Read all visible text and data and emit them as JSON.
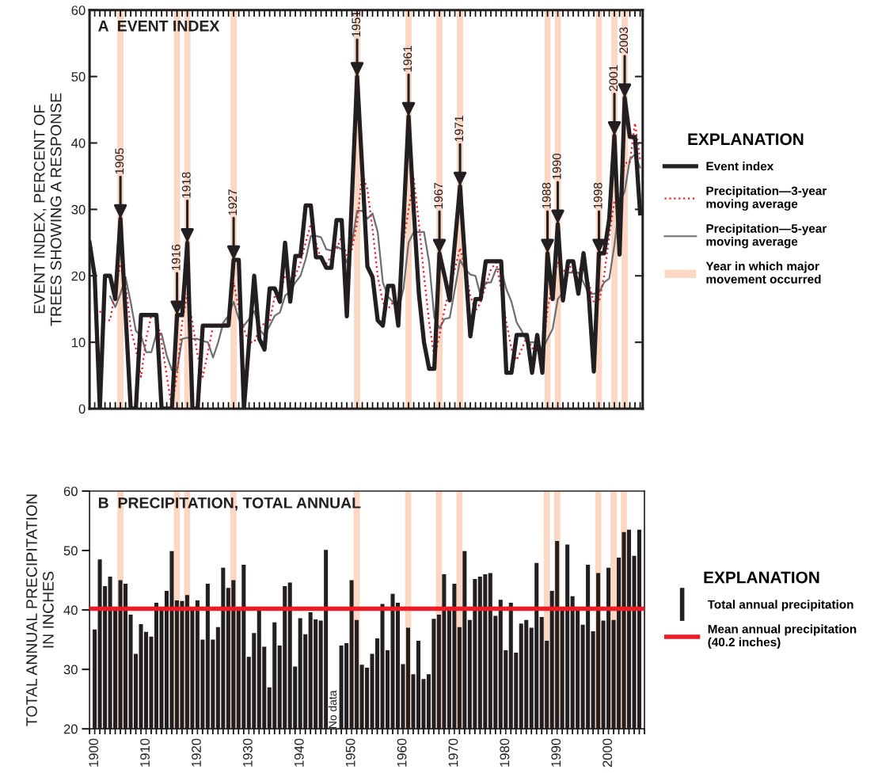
{
  "chart_data": [
    {
      "type": "line",
      "title": "A  EVENT INDEX",
      "ylabel": "EVENT INDEX, PERCENT OF\nTREES SHOWING A RESPONSE",
      "legend_title": "EXPLANATION",
      "legend": "right",
      "tick_labels": "y",
      "grid": false,
      "xlim": [
        1899,
        2006.5
      ],
      "xticks": [
        1900,
        1910,
        1920,
        1930,
        1940,
        1950,
        1960,
        1970,
        1980,
        1990,
        2000
      ],
      "ylim": [
        0,
        60
      ],
      "yticks": [
        0,
        10,
        20,
        30,
        40,
        50,
        60
      ],
      "series": [
        {
          "name": "Event index",
          "color": "#231f20",
          "line_style": "solid",
          "x": [
            1899,
            1900,
            1901,
            1902,
            1903,
            1904,
            1905,
            1906,
            1907,
            1908,
            1909,
            1910,
            1911,
            1912,
            1913,
            1914,
            1915,
            1916,
            1917,
            1918,
            1919,
            1920,
            1921,
            1922,
            1923,
            1924,
            1925,
            1926,
            1927,
            1928,
            1929,
            1930,
            1931,
            1932,
            1933,
            1934,
            1935,
            1936,
            1937,
            1938,
            1939,
            1940,
            1941,
            1942,
            1943,
            1944,
            1945,
            1946,
            1947,
            1948,
            1949,
            1950,
            1951,
            1952,
            1953,
            1954,
            1955,
            1956,
            1957,
            1958,
            1959,
            1960,
            1961,
            1962,
            1963,
            1964,
            1965,
            1966,
            1967,
            1968,
            1969,
            1970,
            1971,
            1972,
            1973,
            1974,
            1975,
            1976,
            1977,
            1978,
            1979,
            1980,
            1981,
            1982,
            1983,
            1984,
            1985,
            1986,
            1987,
            1988,
            1989,
            1990,
            1991,
            1992,
            1993,
            1994,
            1995,
            1996,
            1997,
            1998,
            1999,
            2000,
            2001,
            2002,
            2003,
            2004,
            2005,
            2006
          ],
          "values": [
            25,
            20,
            0,
            20,
            20,
            16.5,
            28.6,
            14.3,
            0,
            0,
            14.1,
            14.1,
            14.1,
            14.1,
            0,
            0,
            0,
            14.1,
            14.1,
            25,
            0,
            0,
            12.5,
            12.5,
            12.5,
            12.5,
            12.5,
            12.5,
            22.4,
            22.4,
            0,
            10,
            20,
            10.5,
            8.9,
            18.1,
            18.1,
            16.1,
            25,
            16.1,
            23,
            23,
            30.6,
            30.6,
            22.8,
            22.8,
            21.2,
            21.2,
            28.4,
            28.4,
            13.9,
            32,
            50,
            36,
            21.4,
            19.8,
            13.3,
            12.5,
            18.5,
            18.5,
            12.5,
            28,
            44,
            30,
            17.3,
            10,
            6,
            6,
            23.4,
            20,
            16.3,
            25,
            33.5,
            22,
            10.9,
            16.5,
            16.5,
            22.2,
            22.2,
            22.2,
            22.2,
            5.4,
            5.4,
            11.1,
            11.1,
            11.1,
            5.4,
            11.1,
            5.4,
            23.4,
            16.5,
            27.8,
            16.3,
            22.2,
            22.2,
            17.3,
            23.4,
            17.3,
            5.6,
            23.4,
            23.4,
            28.6,
            41.1,
            23.2,
            46.8,
            40.9,
            40.9,
            29.4
          ]
        },
        {
          "name": "Precipitation—3-year\nmoving average",
          "color": "#e8202a",
          "line_style": "dotted",
          "x": [
            1901,
            1902,
            1903,
            1904,
            1905,
            1906,
            1907,
            1908,
            1909,
            1910,
            1911,
            1912,
            1913,
            1914,
            1915,
            1916,
            1917,
            1918,
            1919,
            1920,
            1921,
            1922,
            1923,
            1924,
            1925,
            1926,
            1927,
            1928,
            1929,
            1930,
            1931,
            1932,
            1933,
            1934,
            1935,
            1936,
            1937,
            1938,
            1939,
            1940,
            1941,
            1942,
            1943,
            1944,
            1945,
            1946,
            1947,
            1948,
            1949,
            1950,
            1951,
            1952,
            1953,
            1954,
            1955,
            1956,
            1957,
            1958,
            1959,
            1960,
            1961,
            1962,
            1963,
            1964,
            1965,
            1966,
            1967,
            1968,
            1969,
            1970,
            1971,
            1972,
            1973,
            1974,
            1975,
            1976,
            1977,
            1978,
            1979,
            1980,
            1981,
            1982,
            1983,
            1984,
            1985,
            1986,
            1987,
            1988,
            1989,
            1990,
            1991,
            1992,
            1993,
            1994,
            1995,
            1996,
            1997,
            1998,
            1999,
            2000,
            2001,
            2002,
            2003,
            2004,
            2005,
            2006
          ],
          "values": [
            14.7,
            13.3,
            13.3,
            17.7,
            21.8,
            19,
            12,
            9,
            4.8,
            10.5,
            14.1,
            14.1,
            10,
            5,
            0,
            5.2,
            13,
            17.3,
            12.9,
            8,
            4.8,
            8.5,
            12.5,
            12.5,
            12.5,
            13.3,
            19,
            15,
            12,
            10,
            10,
            12,
            12.9,
            13,
            17,
            17.5,
            20,
            19.5,
            20,
            22,
            25,
            27.8,
            25,
            22.5,
            21.8,
            23,
            24,
            26,
            23,
            24,
            28,
            35.5,
            33,
            27,
            20,
            16,
            15,
            16,
            16.5,
            25,
            30,
            34.7,
            28,
            20,
            13,
            7.7,
            11,
            15,
            18,
            21,
            24.2,
            21,
            17,
            14.7,
            16,
            18.5,
            21,
            22,
            18,
            13,
            9,
            7.3,
            9,
            10.9,
            9.1,
            9,
            7.3,
            15,
            19,
            22,
            20.4,
            22,
            20.5,
            21,
            21,
            19,
            16,
            16,
            20,
            26,
            31.3,
            31.3,
            37,
            37,
            43,
            37.5
          ]
        },
        {
          "name": "Precipitation—5-year\nmoving average",
          "color": "#6d6e71",
          "line_style": "solid",
          "x": [
            1903,
            1904,
            1905,
            1906,
            1907,
            1908,
            1909,
            1910,
            1911,
            1912,
            1913,
            1914,
            1915,
            1916,
            1917,
            1918,
            1919,
            1920,
            1921,
            1922,
            1923,
            1924,
            1925,
            1926,
            1927,
            1928,
            1929,
            1930,
            1931,
            1932,
            1933,
            1934,
            1935,
            1936,
            1937,
            1938,
            1939,
            1940,
            1941,
            1942,
            1943,
            1944,
            1945,
            1946,
            1947,
            1948,
            1949,
            1950,
            1951,
            1952,
            1953,
            1954,
            1955,
            1956,
            1957,
            1958,
            1959,
            1960,
            1961,
            1962,
            1963,
            1964,
            1965,
            1966,
            1967,
            1968,
            1969,
            1970,
            1971,
            1972,
            1973,
            1974,
            1975,
            1976,
            1977,
            1978,
            1979,
            1980,
            1981,
            1982,
            1983,
            1984,
            1985,
            1986,
            1987,
            1988,
            1989,
            1990,
            1991,
            1992,
            1993,
            1994,
            1995,
            1996,
            1997,
            1998,
            1999,
            2000,
            2001,
            2002,
            2003,
            2004,
            2005,
            2006
          ],
          "values": [
            16.9,
            15.3,
            17.3,
            19.8,
            16,
            11.7,
            11,
            8.5,
            8.5,
            11.3,
            11.3,
            8,
            5.8,
            5.8,
            10.5,
            10.7,
            10.5,
            10.5,
            10.2,
            10,
            7.7,
            10,
            13,
            14,
            16.1,
            13.5,
            12.5,
            13.5,
            14.7,
            12,
            11,
            12.5,
            14,
            14.5,
            17,
            17.7,
            19,
            20,
            22.5,
            26,
            26,
            25.8,
            24,
            23.8,
            24.4,
            24,
            22,
            25,
            29.8,
            29.8,
            28.6,
            29.4,
            26.6,
            19,
            16.9,
            16,
            14.9,
            18,
            25,
            26.6,
            26.6,
            26.6,
            22,
            13.7,
            12.1,
            13.5,
            13.7,
            18,
            22.4,
            21,
            20.2,
            20,
            17,
            19,
            19,
            21,
            21,
            18,
            16.1,
            13,
            11.7,
            10,
            10,
            10,
            8.9,
            10.5,
            12,
            16.5,
            17.5,
            20.5,
            20.5,
            20.5,
            19,
            17.3,
            17.3,
            17.5,
            19,
            19.6,
            24.6,
            31,
            32.7,
            37.5,
            38.3,
            36.3
          ]
        }
      ],
      "bands": [
        {
          "axis": "x",
          "from": 1904.4,
          "to": 1905.6,
          "color": "#fcd7c3"
        },
        {
          "axis": "x",
          "from": 1915.4,
          "to": 1916.6,
          "color": "#fcd7c3"
        },
        {
          "axis": "x",
          "from": 1917.4,
          "to": 1918.6,
          "color": "#fcd7c3"
        },
        {
          "axis": "x",
          "from": 1926.4,
          "to": 1927.6,
          "color": "#fcd7c3"
        },
        {
          "axis": "x",
          "from": 1950.4,
          "to": 1951.6,
          "color": "#fcd7c3"
        },
        {
          "axis": "x",
          "from": 1960.4,
          "to": 1961.6,
          "color": "#fcd7c3"
        },
        {
          "axis": "x",
          "from": 1966.4,
          "to": 1967.6,
          "color": "#fcd7c3"
        },
        {
          "axis": "x",
          "from": 1970.4,
          "to": 1971.6,
          "color": "#fcd7c3"
        },
        {
          "axis": "x",
          "from": 1987.4,
          "to": 1988.6,
          "color": "#fcd7c3"
        },
        {
          "axis": "x",
          "from": 1989.4,
          "to": 1990.6,
          "color": "#fcd7c3"
        },
        {
          "axis": "x",
          "from": 1997.4,
          "to": 1998.6,
          "color": "#fcd7c3"
        },
        {
          "axis": "x",
          "from": 2000.4,
          "to": 2001.6,
          "color": "#fcd7c3"
        },
        {
          "axis": "x",
          "from": 2002.4,
          "to": 2003.6,
          "color": "#fcd7c3"
        }
      ],
      "annotations": [
        "Year in which major\nmovement occurred",
        {
          "text": "1905",
          "x": 1905,
          "y": 28.6
        },
        {
          "text": "1916",
          "x": 1916,
          "y": 14.1
        },
        {
          "text": "1918",
          "x": 1918,
          "y": 25
        },
        {
          "text": "1927",
          "x": 1927,
          "y": 22.4
        },
        {
          "text": "1951",
          "x": 1951,
          "y": 50
        },
        {
          "text": "1961",
          "x": 1961,
          "y": 44
        },
        {
          "text": "1967",
          "x": 1967,
          "y": 23.4
        },
        {
          "text": "1971",
          "x": 1971,
          "y": 33.5
        },
        {
          "text": "1988",
          "x": 1988,
          "y": 23.4
        },
        {
          "text": "1990",
          "x": 1990,
          "y": 27.8
        },
        {
          "text": "1998",
          "x": 1998,
          "y": 23.4
        },
        {
          "text": "2001",
          "x": 2001,
          "y": 41.1
        },
        {
          "text": "2003",
          "x": 2003,
          "y": 46.8
        }
      ]
    },
    {
      "type": "bar",
      "title": "B  PRECIPITATION, TOTAL ANNUAL",
      "ylabel": "TOTAL ANNUAL PRECIPITATION\nIN INCHES",
      "legend_title": "EXPLANATION",
      "legend": "right",
      "grid": false,
      "xlim": [
        1899,
        2007
      ],
      "xticks": [
        1900,
        1910,
        1920,
        1930,
        1940,
        1950,
        1960,
        1970,
        1980,
        1990,
        2000
      ],
      "ylim": [
        20,
        60
      ],
      "yticks": [
        20,
        30,
        40,
        50,
        60
      ],
      "series": [
        {
          "name": "Total annual precipitation",
          "color": "#231f20",
          "x": [
            1900,
            1901,
            1902,
            1903,
            1904,
            1905,
            1906,
            1907,
            1908,
            1909,
            1910,
            1911,
            1912,
            1913,
            1914,
            1915,
            1916,
            1917,
            1918,
            1919,
            1920,
            1921,
            1922,
            1923,
            1924,
            1925,
            1926,
            1927,
            1928,
            1929,
            1930,
            1931,
            1932,
            1933,
            1934,
            1935,
            1936,
            1937,
            1938,
            1939,
            1940,
            1941,
            1942,
            1943,
            1944,
            1945,
            1946,
            1947,
            1948,
            1949,
            1950,
            1951,
            1952,
            1953,
            1954,
            1955,
            1956,
            1957,
            1958,
            1959,
            1960,
            1961,
            1962,
            1963,
            1964,
            1965,
            1966,
            1967,
            1968,
            1969,
            1970,
            1971,
            1972,
            1973,
            1974,
            1975,
            1976,
            1977,
            1978,
            1979,
            1980,
            1981,
            1982,
            1983,
            1984,
            1985,
            1986,
            1987,
            1988,
            1989,
            1990,
            1991,
            1992,
            1993,
            1994,
            1995,
            1996,
            1997,
            1998,
            1999,
            2000,
            2001,
            2002,
            2003,
            2004,
            2005,
            2006
          ],
          "values": [
            36.7,
            48.5,
            44,
            45.6,
            40,
            45,
            44.4,
            39.2,
            32.6,
            37.6,
            36.3,
            35.5,
            41.2,
            40,
            43.2,
            49.9,
            41.6,
            41.5,
            42.5,
            40,
            41.6,
            35,
            44.4,
            35,
            37.1,
            47.1,
            43.7,
            45,
            40,
            47.6,
            32.1,
            36.1,
            40,
            33.8,
            27,
            37.9,
            34,
            44,
            44.6,
            30.5,
            38.6,
            35.9,
            39.6,
            38.4,
            38.2,
            50.1,
            null,
            null,
            34,
            34.4,
            45,
            38.3,
            30.8,
            30.3,
            32.6,
            35.2,
            41,
            33.2,
            42.7,
            41.2,
            30.9,
            37,
            29.2,
            34.8,
            28.4,
            29.2,
            38.5,
            39.2,
            46,
            40,
            44.4,
            37.1,
            49.9,
            38.3,
            45.2,
            45.6,
            46,
            46.2,
            39,
            41.7,
            33.2,
            41.2,
            32.8,
            37.7,
            38.3,
            37,
            47.9,
            38.8,
            34.8,
            43.2,
            51.6,
            40,
            51,
            42.3,
            40,
            37.5,
            47.6,
            36.4,
            46.2,
            38.2,
            47.1,
            38.3,
            48.8,
            53.1,
            53.5,
            49.1,
            53.5
          ]
        }
      ],
      "ref_lines": [
        {
          "axis": "y",
          "value": 40.2,
          "color": "#ed1c24",
          "label": "Mean annual precipitation\n(40.2 inches)"
        }
      ],
      "bands": [
        {
          "axis": "x",
          "from": 1904.4,
          "to": 1905.6,
          "color": "#fcd7c3"
        },
        {
          "axis": "x",
          "from": 1915.4,
          "to": 1916.6,
          "color": "#fcd7c3"
        },
        {
          "axis": "x",
          "from": 1917.4,
          "to": 1918.6,
          "color": "#fcd7c3"
        },
        {
          "axis": "x",
          "from": 1926.4,
          "to": 1927.6,
          "color": "#fcd7c3"
        },
        {
          "axis": "x",
          "from": 1950.4,
          "to": 1951.6,
          "color": "#fcd7c3"
        },
        {
          "axis": "x",
          "from": 1960.4,
          "to": 1961.6,
          "color": "#fcd7c3"
        },
        {
          "axis": "x",
          "from": 1966.4,
          "to": 1967.6,
          "color": "#fcd7c3"
        },
        {
          "axis": "x",
          "from": 1970.4,
          "to": 1971.6,
          "color": "#fcd7c3"
        },
        {
          "axis": "x",
          "from": 1987.4,
          "to": 1988.6,
          "color": "#fcd7c3"
        },
        {
          "axis": "x",
          "from": 1989.4,
          "to": 1990.6,
          "color": "#fcd7c3"
        },
        {
          "axis": "x",
          "from": 1997.4,
          "to": 1998.6,
          "color": "#fcd7c3"
        },
        {
          "axis": "x",
          "from": 2000.4,
          "to": 2001.6,
          "color": "#fcd7c3"
        },
        {
          "axis": "x",
          "from": 2002.4,
          "to": 2003.6,
          "color": "#fcd7c3"
        }
      ],
      "annotations": [
        "No data"
      ]
    }
  ]
}
